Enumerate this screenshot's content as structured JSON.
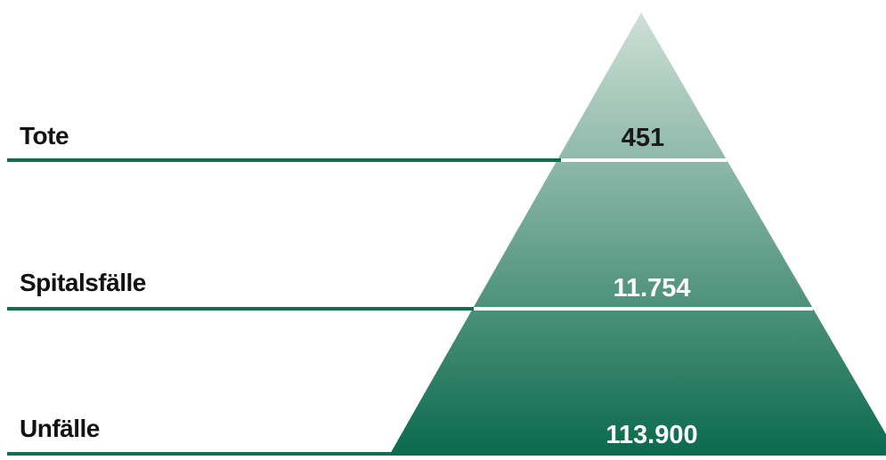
{
  "pyramid": {
    "levels": [
      {
        "label": "Tote",
        "value": "451"
      },
      {
        "label": "Spitalsfälle",
        "value": "11.754"
      },
      {
        "label": "Unfälle",
        "value": "113.900"
      }
    ]
  },
  "colors": {
    "rule": "#0e6e4e",
    "top": "#cfe0d8",
    "bottom": "#0b6a4c",
    "value_dark": "#1a1a1a",
    "value_light": "#ffffff",
    "divider": "#ffffff"
  }
}
